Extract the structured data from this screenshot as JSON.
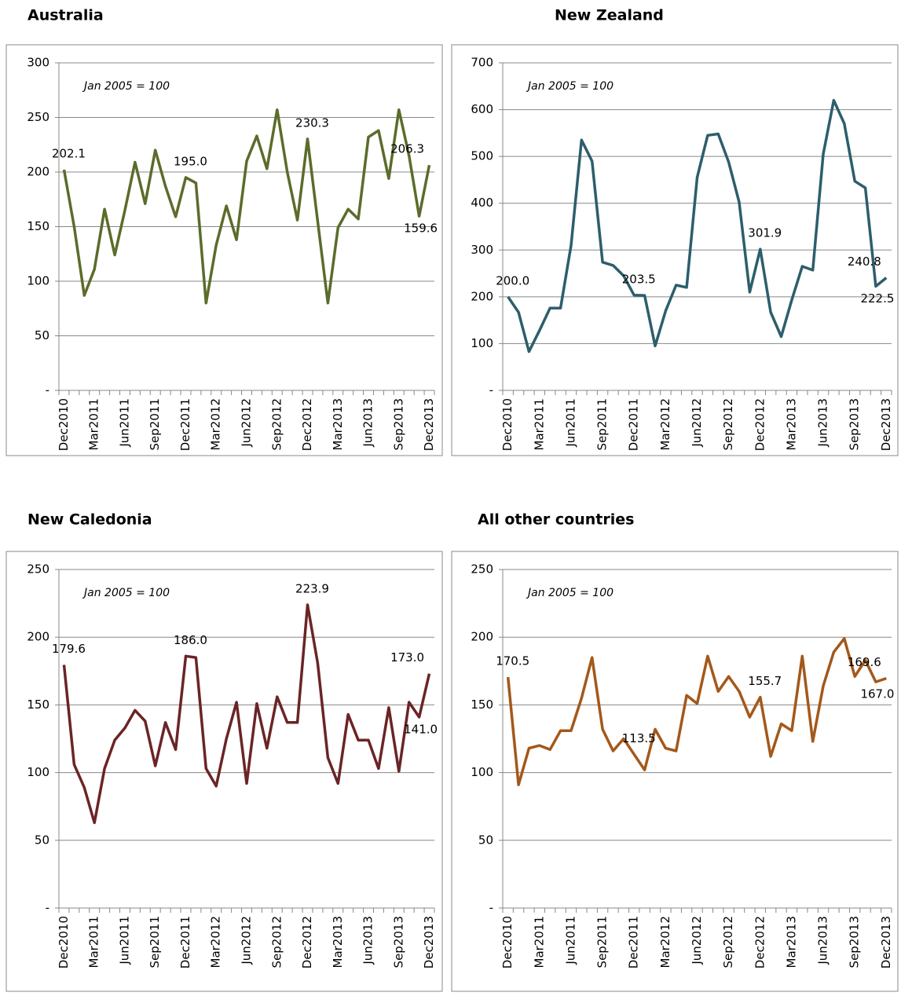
{
  "chart_data": [
    {
      "type": "line",
      "title": "Australia",
      "annotation": "Jan 2005 = 100",
      "color": "#5b6c2b",
      "categories": [
        "Dec2010",
        null,
        null,
        "Mar2011",
        null,
        null,
        "Jun2011",
        null,
        null,
        "Sep2011",
        null,
        null,
        "Dec2011",
        null,
        null,
        "Mar2012",
        null,
        null,
        "Jun2012",
        null,
        null,
        "Sep2012",
        null,
        null,
        "Dec2012",
        null,
        null,
        "Mar2013",
        null,
        null,
        "Jun2013",
        null,
        null,
        "Sep2013",
        null,
        null,
        "Dec2013"
      ],
      "values": [
        202.1,
        150,
        87,
        111,
        166,
        124,
        165,
        209,
        171,
        220,
        187,
        159,
        195.0,
        190,
        80,
        133,
        169,
        138,
        210,
        233,
        203,
        257,
        200,
        156,
        230.3,
        155,
        80,
        149,
        166,
        157,
        232,
        238,
        194,
        257,
        215,
        159.6,
        206.3
      ],
      "value_labels": [
        "202.1",
        null,
        null,
        null,
        null,
        null,
        null,
        null,
        null,
        null,
        null,
        null,
        "195.0",
        null,
        null,
        null,
        null,
        null,
        null,
        null,
        null,
        null,
        null,
        null,
        "230.3",
        null,
        null,
        null,
        null,
        null,
        null,
        null,
        null,
        null,
        null,
        "159.6",
        "206.3"
      ],
      "ylim": [
        0,
        300
      ],
      "yticks": [
        {
          "value": 0,
          "label": "-"
        },
        50,
        100,
        150,
        200,
        250,
        300
      ],
      "grid": true
    },
    {
      "type": "line",
      "title": "New Zealand",
      "annotation": "Jan 2005 = 100",
      "color": "#2d5e6c",
      "categories": [
        "Dec2010",
        null,
        null,
        "Mar2011",
        null,
        null,
        "Jun2011",
        null,
        null,
        "Sep2011",
        null,
        null,
        "Dec2011",
        null,
        null,
        "Mar2012",
        null,
        null,
        "Jun2012",
        null,
        null,
        "Sep2012",
        null,
        null,
        "Dec2012",
        null,
        null,
        "Mar2013",
        null,
        null,
        "Jun2013",
        null,
        null,
        "Sep2013",
        null,
        null,
        "Dec2013"
      ],
      "values": [
        200.0,
        167,
        83,
        128,
        176,
        176,
        310,
        535,
        490,
        274,
        267,
        245,
        203.5,
        203,
        95,
        170,
        225,
        220,
        455,
        545,
        548,
        488,
        402,
        210,
        301.9,
        167,
        115,
        193,
        265,
        257,
        505,
        620,
        570,
        447,
        433,
        222.5,
        240.8
      ],
      "value_labels": [
        "200.0",
        null,
        null,
        null,
        null,
        null,
        null,
        null,
        null,
        null,
        null,
        null,
        "203.5",
        null,
        null,
        null,
        null,
        null,
        null,
        null,
        null,
        null,
        null,
        null,
        "301.9",
        null,
        null,
        null,
        null,
        null,
        null,
        null,
        null,
        null,
        null,
        "222.5",
        "240.8"
      ],
      "ylim": [
        0,
        700
      ],
      "yticks": [
        {
          "value": 0,
          "label": "-"
        },
        100,
        200,
        300,
        400,
        500,
        600,
        700
      ],
      "grid": true
    },
    {
      "type": "line",
      "title": "New Caledonia",
      "annotation": "Jan 2005 = 100",
      "color": "#6b2426",
      "categories": [
        "Dec2010",
        null,
        null,
        "Mar2011",
        null,
        null,
        "Jun2011",
        null,
        null,
        "Sep2011",
        null,
        null,
        "Dec2011",
        null,
        null,
        "Mar2012",
        null,
        null,
        "Jun2012",
        null,
        null,
        "Sep2012",
        null,
        null,
        "Dec2012",
        null,
        null,
        "Mar2013",
        null,
        null,
        "Jun2013",
        null,
        null,
        "Sep2013",
        null,
        null,
        "Dec2013"
      ],
      "values": [
        179.6,
        106,
        89,
        63,
        103,
        124,
        133,
        146,
        138,
        105,
        137,
        117,
        186.0,
        185,
        103,
        90,
        125,
        152,
        92,
        151,
        118,
        156,
        137,
        137,
        223.9,
        181,
        111,
        92,
        143,
        124,
        124,
        103,
        148,
        101,
        152,
        141.0,
        173.0
      ],
      "value_labels": [
        "179.6",
        null,
        null,
        null,
        null,
        null,
        null,
        null,
        null,
        null,
        null,
        null,
        "186.0",
        null,
        null,
        null,
        null,
        null,
        null,
        null,
        null,
        null,
        null,
        null,
        "223.9",
        null,
        null,
        null,
        null,
        null,
        null,
        null,
        null,
        null,
        null,
        "141.0",
        "173.0"
      ],
      "ylim": [
        0,
        250
      ],
      "yticks": [
        {
          "value": 0,
          "label": "-"
        },
        50,
        100,
        150,
        200,
        250
      ],
      "grid": true
    },
    {
      "type": "line",
      "title": "All other countries",
      "annotation": "Jan 2005 = 100",
      "color": "#a3581a",
      "categories": [
        "Dec2010",
        null,
        null,
        "Mar2011",
        null,
        null,
        "Jun2011",
        null,
        null,
        "Sep2011",
        null,
        null,
        "Dec2011",
        null,
        null,
        "Mar2012",
        null,
        null,
        "Jun2012",
        null,
        null,
        "Sep2012",
        null,
        null,
        "Dec2012",
        null,
        null,
        "Mar2013",
        null,
        null,
        "Jun2013",
        null,
        null,
        "Sep2013",
        null,
        null,
        "Dec2013"
      ],
      "values": [
        170.5,
        91,
        118,
        120,
        117,
        131,
        131,
        155,
        185,
        132,
        116,
        125,
        113.5,
        102,
        132,
        118,
        116,
        157,
        151,
        186,
        160,
        171,
        160,
        141,
        155.7,
        112,
        136,
        131,
        186,
        123,
        164,
        189,
        199,
        171,
        183,
        167.0,
        169.6
      ],
      "value_labels": [
        "170.5",
        null,
        null,
        null,
        null,
        null,
        null,
        null,
        null,
        null,
        null,
        null,
        "113.5",
        null,
        null,
        null,
        null,
        null,
        null,
        null,
        null,
        null,
        null,
        null,
        "155.7",
        null,
        null,
        null,
        null,
        null,
        null,
        null,
        null,
        null,
        null,
        "167.0",
        "169.6"
      ],
      "ylim": [
        0,
        250
      ],
      "yticks": [
        {
          "value": 0,
          "label": "-"
        },
        50,
        100,
        150,
        200,
        250
      ],
      "grid": true
    }
  ]
}
